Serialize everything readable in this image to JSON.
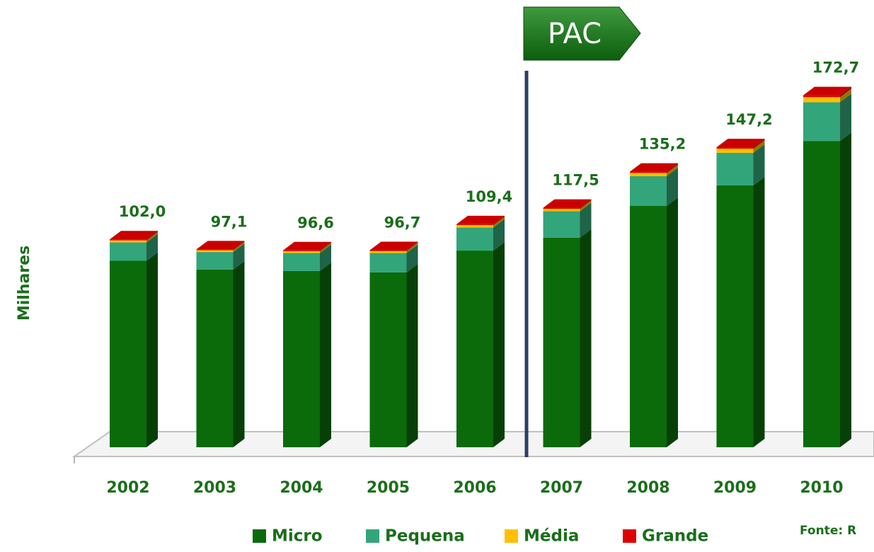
{
  "chart_data": {
    "type": "stacked_bar_3d",
    "y_label": "Milhares",
    "categories": [
      "2002",
      "2003",
      "2004",
      "2005",
      "2006",
      "2007",
      "2008",
      "2009",
      "2010"
    ],
    "series": [
      {
        "name": "Micro",
        "color": "#0b6b0b",
        "values": [
          91.5,
          87.2,
          86.5,
          85.8,
          96.5,
          102.8,
          118.4,
          128.5,
          150.3
        ]
      },
      {
        "name": "Pequena",
        "color": "#33a57a",
        "values": [
          9.0,
          8.6,
          8.8,
          9.5,
          11.3,
          13.0,
          14.6,
          16.0,
          19.0
        ]
      },
      {
        "name": "Média",
        "color": "#ffc000",
        "values": [
          1.0,
          0.9,
          0.9,
          1.0,
          1.2,
          1.2,
          1.6,
          2.0,
          2.5
        ]
      },
      {
        "name": "Grande",
        "color": "#e00000",
        "values": [
          0.5,
          0.4,
          0.4,
          0.4,
          0.4,
          0.5,
          0.6,
          0.7,
          0.9
        ]
      }
    ],
    "totals": {
      "values": [
        102.0,
        97.1,
        96.6,
        96.7,
        109.4,
        117.5,
        135.2,
        147.2,
        172.7
      ],
      "value_labels": [
        "102,0",
        "97,1",
        "96,6",
        "96,7",
        "109,4",
        "117,5",
        "135,2",
        "147,2",
        "172,7"
      ]
    },
    "ylim": [
      0,
      180
    ],
    "annotations": [
      {
        "text": "PAC"
      }
    ],
    "source": "Fonte: R"
  }
}
